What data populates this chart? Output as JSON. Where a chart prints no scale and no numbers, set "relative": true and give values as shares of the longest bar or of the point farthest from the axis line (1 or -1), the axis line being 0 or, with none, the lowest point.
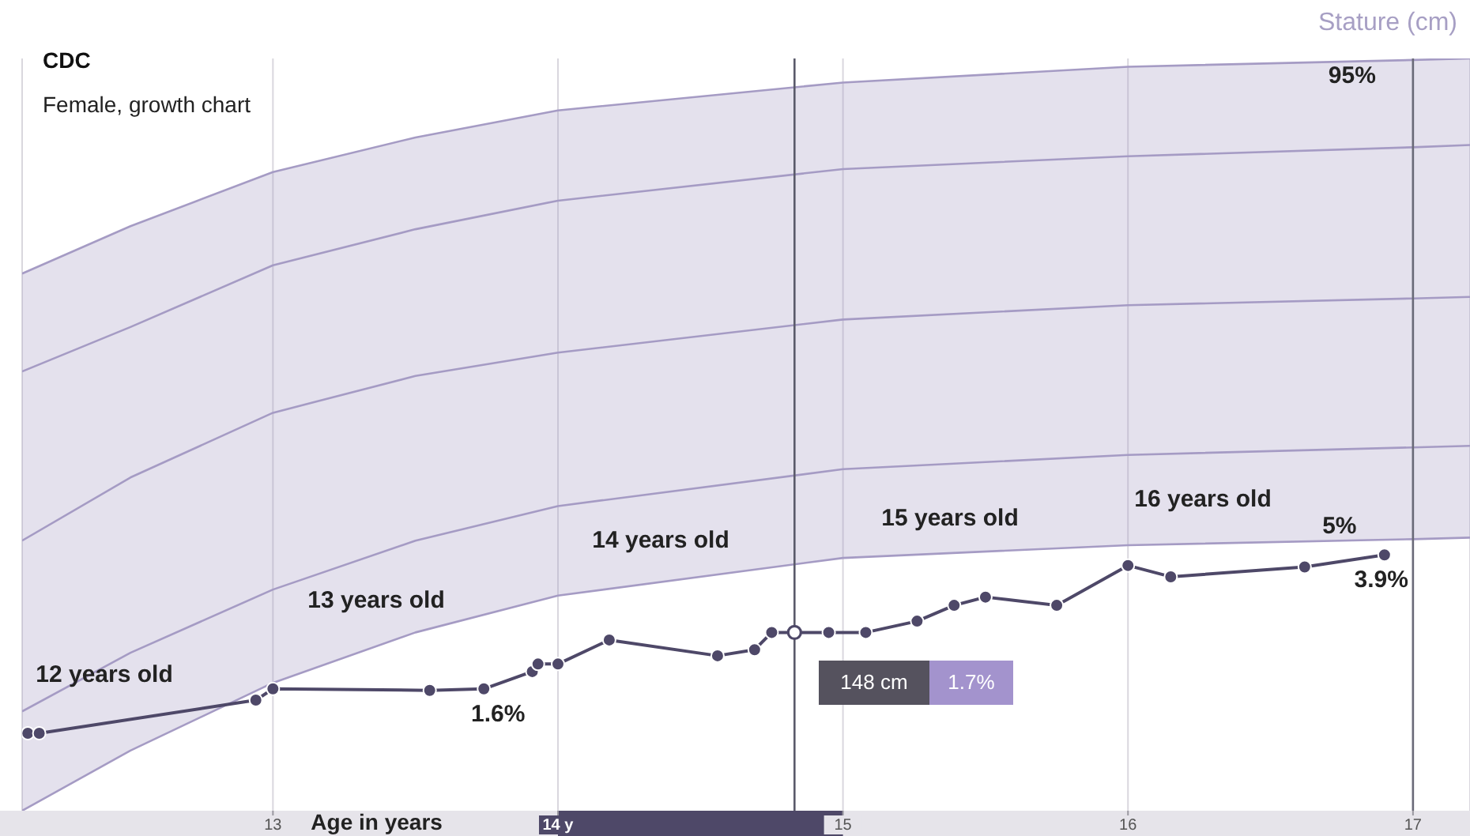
{
  "chart_data": {
    "type": "line",
    "title": "CDC",
    "subtitle": "Female, growth chart",
    "xlabel": "Age in years",
    "ylabel": "Stature (cm)",
    "relative": true,
    "xlim": [
      12.12,
      17.2
    ],
    "xticks": [
      13,
      {
        "value": 14,
        "label": "14 y"
      },
      15,
      16,
      17
    ],
    "series": [
      {
        "color": "#a59bc4",
        "x": [
          12.12,
          12.5,
          13,
          13.5,
          14,
          15,
          16,
          17,
          17.2
        ],
        "values": [
          0.714,
          0.777,
          0.849,
          0.895,
          0.931,
          0.968,
          0.989,
          0.998,
          1.0
        ]
      },
      {
        "color": "#a59bc4",
        "x": [
          12.12,
          12.5,
          13,
          13.5,
          14,
          15,
          16,
          17,
          17.2
        ],
        "values": [
          0.584,
          0.643,
          0.725,
          0.773,
          0.811,
          0.853,
          0.87,
          0.882,
          0.885
        ]
      },
      {
        "color": "#a59bc4",
        "x": [
          12.12,
          12.5,
          13,
          13.5,
          14,
          15,
          16,
          17,
          17.2
        ],
        "values": [
          0.359,
          0.443,
          0.529,
          0.578,
          0.609,
          0.653,
          0.672,
          0.681,
          0.683
        ],
        "lower": [
          0,
          0.08,
          0.17,
          0.237,
          0.286,
          0.336,
          0.353,
          0.361,
          0.363
        ],
        "upper": [
          0.714,
          0.777,
          0.849,
          0.895,
          0.931,
          0.968,
          0.989,
          0.998,
          1.0
        ]
      },
      {
        "color": "#a59bc4",
        "x": [
          12.12,
          12.5,
          13,
          13.5,
          14,
          15,
          16,
          17,
          17.2
        ],
        "values": [
          0.132,
          0.21,
          0.294,
          0.359,
          0.405,
          0.454,
          0.473,
          0.483,
          0.485
        ]
      },
      {
        "color": "#a59bc4",
        "x": [
          12.12,
          12.5,
          13,
          13.5,
          14,
          15,
          16,
          17,
          17.2
        ],
        "values": [
          0,
          0.08,
          0.17,
          0.237,
          0.286,
          0.336,
          0.353,
          0.361,
          0.363
        ]
      },
      {
        "color": "#4e4868",
        "marker": "circle",
        "x": [
          12.14,
          12.18,
          12.94,
          13.0,
          13.55,
          13.74,
          13.91,
          13.93,
          14.0,
          14.18,
          14.56,
          14.69,
          14.75,
          14.83,
          14.95,
          15.08,
          15.26,
          15.39,
          15.5,
          15.75,
          16.0,
          16.15,
          16.62,
          16.9
        ],
        "values": [
          0.103,
          0.103,
          0.147,
          0.162,
          0.16,
          0.162,
          0.185,
          0.195,
          0.195,
          0.227,
          0.206,
          0.214,
          0.237,
          0.237,
          0.237,
          0.237,
          0.252,
          0.273,
          0.284,
          0.273,
          0.326,
          0.311,
          0.324,
          0.34
        ]
      }
    ],
    "ref_lines": [
      {
        "axis": "x",
        "value": 14.83,
        "color": "#5a5a6a"
      },
      {
        "axis": "x",
        "value": 17,
        "color": "#6a6a78"
      }
    ],
    "annotations": [
      "12 years old",
      "13 years old",
      "14 years old",
      "15 years old",
      "16 years old",
      {
        "text": "95%",
        "x": 16.72,
        "y": 0.998
      },
      {
        "text": "5%",
        "x": 16.72,
        "y": 0.362
      },
      {
        "text": "1.6%",
        "x": 13.74,
        "y": 0.162
      },
      {
        "text": "3.9%",
        "x": 16.9,
        "y": 0.34
      },
      "148 cm",
      "1.7%"
    ],
    "grid": "x",
    "legend": false,
    "marker": "none",
    "line_style": "solid"
  }
}
